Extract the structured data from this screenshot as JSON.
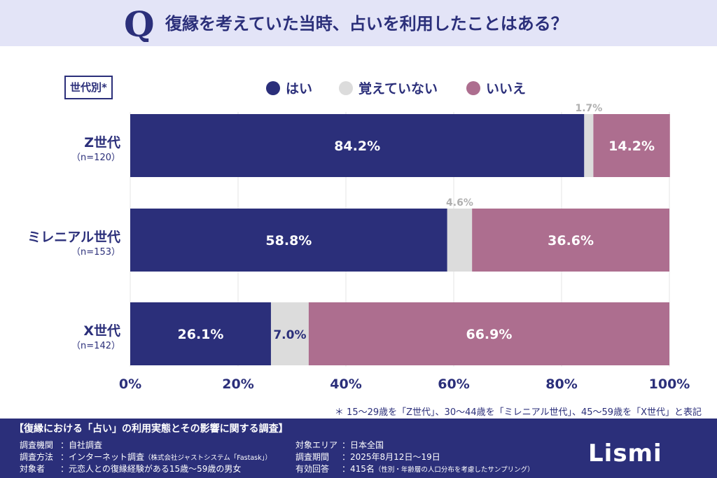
{
  "header": {
    "question": "復縁を考えていた当時、占いを利用したことはある？"
  },
  "segment_label": "世代別*",
  "legend": [
    {
      "label": "はい",
      "color": "#2b2f7a"
    },
    {
      "label": "覚えていない",
      "color": "#dcdcdc"
    },
    {
      "label": "いいえ",
      "color": "#ad6e8f"
    }
  ],
  "chart_data": {
    "type": "bar",
    "orientation": "horizontal",
    "stacked": true,
    "xlim": [
      0,
      100
    ],
    "x_ticks": [
      "0%",
      "20%",
      "40%",
      "60%",
      "80%",
      "100%"
    ],
    "categories": [
      {
        "name": "Z世代",
        "n": "（n=120）"
      },
      {
        "name": "ミレニアル世代",
        "n": "（n=153）"
      },
      {
        "name": "X世代",
        "n": "（n=142）"
      }
    ],
    "series": [
      {
        "name": "はい",
        "values": [
          84.2,
          58.8,
          26.1
        ],
        "labels": [
          "84.2%",
          "58.8%",
          "26.1%"
        ]
      },
      {
        "name": "覚えていない",
        "values": [
          1.7,
          4.6,
          7.0
        ],
        "labels": [
          "1.7%",
          "4.6%",
          "7.0%"
        ]
      },
      {
        "name": "いいえ",
        "values": [
          14.2,
          36.6,
          66.9
        ],
        "labels": [
          "14.2%",
          "36.6%",
          "66.9%"
        ]
      }
    ]
  },
  "footnote": "＊ 15〜29歳を「Z世代」、30〜44歳を「ミレニアル世代」、45〜59歳を「X世代」と表記",
  "footer": {
    "title": "【復縁における「占い」の利用実態とその影響に関する調査】",
    "left": [
      {
        "key": "調査機関",
        "value": "：自社調査",
        "note": ""
      },
      {
        "key": "調査方法",
        "value": "：インターネット調査",
        "note": "（株式会社ジャストシステム「Fastask」）"
      },
      {
        "key": "対象者",
        "value": "：元恋人との復縁経験がある15歳〜59歳の男女",
        "note": ""
      }
    ],
    "right": [
      {
        "key": "対象エリア",
        "value": "：日本全国",
        "note": ""
      },
      {
        "key": "調査期間",
        "value": "：2025年8月12日〜19日",
        "note": ""
      },
      {
        "key": "有効回答",
        "value": "：415名",
        "note": "（性別・年齢層の人口分布を考慮したサンプリング）"
      }
    ],
    "logo": "Lismi"
  }
}
